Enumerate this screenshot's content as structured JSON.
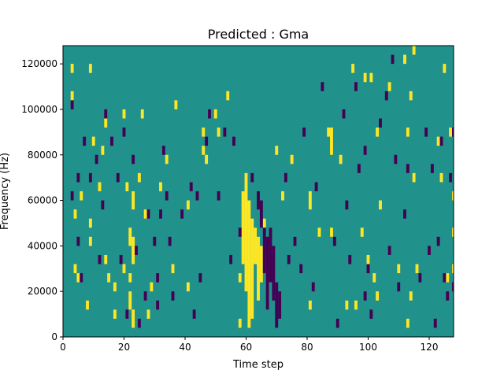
{
  "chart_data": {
    "type": "heatmap",
    "title": "Predicted : Gma",
    "xlabel": "Time step",
    "ylabel": "Frequency (Hz)",
    "xlim": [
      0,
      128
    ],
    "ylim": [
      0,
      128000
    ],
    "x_ticks": [
      0,
      20,
      40,
      60,
      80,
      100,
      120
    ],
    "x_tick_labels": [
      "0",
      "20",
      "40",
      "60",
      "80",
      "100",
      "120"
    ],
    "y_ticks": [
      0,
      20000,
      40000,
      60000,
      80000,
      100000,
      120000
    ],
    "y_tick_labels": [
      "0",
      "20000",
      "40000",
      "60000",
      "80000",
      "100000",
      "120000"
    ],
    "grid": false,
    "colormap": "viridis",
    "background_value": 0,
    "colors": {
      "background": "#21918c",
      "high": "#fde725",
      "low": "#440154"
    },
    "freq_bin_hz": 4000,
    "high_cells": [
      [
        3,
        116000,
        120000
      ],
      [
        3,
        104000,
        108000
      ],
      [
        4,
        52000,
        56000
      ],
      [
        4,
        28000,
        32000
      ],
      [
        5,
        24000,
        28000
      ],
      [
        6,
        60000,
        64000
      ],
      [
        8,
        12000,
        16000
      ],
      [
        9,
        116000,
        120000
      ],
      [
        9,
        48000,
        52000
      ],
      [
        9,
        40000,
        44000
      ],
      [
        10,
        84000,
        88000
      ],
      [
        12,
        64000,
        68000
      ],
      [
        13,
        80000,
        84000
      ],
      [
        14,
        92000,
        96000
      ],
      [
        14,
        32000,
        36000
      ],
      [
        15,
        24000,
        28000
      ],
      [
        17,
        20000,
        24000
      ],
      [
        17,
        8000,
        12000
      ],
      [
        20,
        96000,
        100000
      ],
      [
        20,
        28000,
        32000
      ],
      [
        21,
        64000,
        68000
      ],
      [
        22,
        40000,
        48000
      ],
      [
        22,
        24000,
        28000
      ],
      [
        22,
        12000,
        20000
      ],
      [
        23,
        56000,
        64000
      ],
      [
        23,
        32000,
        44000
      ],
      [
        23,
        4000,
        12000
      ],
      [
        25,
        68000,
        72000
      ],
      [
        26,
        96000,
        100000
      ],
      [
        27,
        52000,
        56000
      ],
      [
        28,
        8000,
        12000
      ],
      [
        29,
        20000,
        24000
      ],
      [
        32,
        64000,
        68000
      ],
      [
        34,
        76000,
        80000
      ],
      [
        36,
        28000,
        32000
      ],
      [
        37,
        100000,
        104000
      ],
      [
        41,
        56000,
        60000
      ],
      [
        41,
        20000,
        24000
      ],
      [
        46,
        88000,
        92000
      ],
      [
        46,
        80000,
        84000
      ],
      [
        47,
        76000,
        80000
      ],
      [
        50,
        96000,
        100000
      ],
      [
        51,
        88000,
        92000
      ],
      [
        54,
        104000,
        108000
      ],
      [
        58,
        24000,
        28000
      ],
      [
        58,
        4000,
        8000
      ],
      [
        59,
        32000,
        64000
      ],
      [
        60,
        20000,
        72000
      ],
      [
        61,
        4000,
        60000
      ],
      [
        62,
        8000,
        52000
      ],
      [
        63,
        32000,
        48000
      ],
      [
        64,
        16000,
        44000
      ],
      [
        65,
        24000,
        40000
      ],
      [
        66,
        48000,
        52000
      ],
      [
        68,
        36000,
        40000
      ],
      [
        70,
        80000,
        84000
      ],
      [
        72,
        60000,
        64000
      ],
      [
        75,
        76000,
        80000
      ],
      [
        81,
        56000,
        64000
      ],
      [
        81,
        12000,
        16000
      ],
      [
        84,
        44000,
        48000
      ],
      [
        87,
        88000,
        92000
      ],
      [
        88,
        80000,
        92000
      ],
      [
        88,
        44000,
        48000
      ],
      [
        91,
        76000,
        80000
      ],
      [
        93,
        12000,
        16000
      ],
      [
        95,
        116000,
        120000
      ],
      [
        96,
        12000,
        16000
      ],
      [
        98,
        44000,
        48000
      ],
      [
        99,
        112000,
        116000
      ],
      [
        100,
        32000,
        36000
      ],
      [
        101,
        112000,
        116000
      ],
      [
        102,
        24000,
        28000
      ],
      [
        103,
        16000,
        20000
      ],
      [
        103,
        88000,
        92000
      ],
      [
        104,
        56000,
        60000
      ],
      [
        107,
        108000,
        112000
      ],
      [
        110,
        28000,
        32000
      ],
      [
        112,
        120000,
        124000
      ],
      [
        113,
        4000,
        8000
      ],
      [
        113,
        88000,
        92000
      ],
      [
        114,
        16000,
        20000
      ],
      [
        114,
        104000,
        108000
      ],
      [
        115,
        124000,
        128000
      ],
      [
        115,
        68000,
        72000
      ],
      [
        116,
        28000,
        32000
      ],
      [
        123,
        84000,
        88000
      ],
      [
        124,
        68000,
        72000
      ],
      [
        125,
        116000,
        120000
      ],
      [
        126,
        24000,
        28000
      ],
      [
        127,
        88000,
        92000
      ],
      [
        128,
        44000,
        48000
      ],
      [
        128,
        60000,
        64000
      ],
      [
        128,
        28000,
        32000
      ]
    ],
    "low_cells": [
      [
        3,
        100000,
        104000
      ],
      [
        3,
        60000,
        64000
      ],
      [
        5,
        68000,
        72000
      ],
      [
        5,
        40000,
        44000
      ],
      [
        6,
        24000,
        28000
      ],
      [
        7,
        84000,
        88000
      ],
      [
        9,
        68000,
        72000
      ],
      [
        11,
        76000,
        80000
      ],
      [
        12,
        32000,
        36000
      ],
      [
        13,
        56000,
        60000
      ],
      [
        14,
        96000,
        100000
      ],
      [
        16,
        84000,
        88000
      ],
      [
        18,
        68000,
        72000
      ],
      [
        19,
        32000,
        36000
      ],
      [
        20,
        88000,
        92000
      ],
      [
        21,
        8000,
        12000
      ],
      [
        23,
        76000,
        80000
      ],
      [
        24,
        36000,
        40000
      ],
      [
        25,
        4000,
        8000
      ],
      [
        27,
        16000,
        20000
      ],
      [
        28,
        52000,
        56000
      ],
      [
        30,
        40000,
        44000
      ],
      [
        31,
        24000,
        28000
      ],
      [
        31,
        12000,
        16000
      ],
      [
        32,
        52000,
        56000
      ],
      [
        33,
        80000,
        84000
      ],
      [
        34,
        60000,
        64000
      ],
      [
        35,
        40000,
        44000
      ],
      [
        36,
        16000,
        20000
      ],
      [
        39,
        52000,
        56000
      ],
      [
        42,
        64000,
        68000
      ],
      [
        43,
        8000,
        12000
      ],
      [
        44,
        60000,
        64000
      ],
      [
        45,
        24000,
        28000
      ],
      [
        47,
        84000,
        88000
      ],
      [
        48,
        96000,
        100000
      ],
      [
        51,
        60000,
        64000
      ],
      [
        53,
        88000,
        92000
      ],
      [
        55,
        32000,
        36000
      ],
      [
        56,
        84000,
        88000
      ],
      [
        58,
        44000,
        48000
      ],
      [
        62,
        68000,
        72000
      ],
      [
        64,
        56000,
        64000
      ],
      [
        65,
        48000,
        60000
      ],
      [
        66,
        28000,
        48000
      ],
      [
        67,
        12000,
        44000
      ],
      [
        68,
        24000,
        48000
      ],
      [
        69,
        16000,
        40000
      ],
      [
        70,
        4000,
        24000
      ],
      [
        71,
        8000,
        20000
      ],
      [
        73,
        68000,
        72000
      ],
      [
        74,
        32000,
        36000
      ],
      [
        76,
        40000,
        44000
      ],
      [
        78,
        28000,
        32000
      ],
      [
        79,
        88000,
        92000
      ],
      [
        82,
        20000,
        24000
      ],
      [
        83,
        64000,
        68000
      ],
      [
        85,
        108000,
        112000
      ],
      [
        89,
        40000,
        44000
      ],
      [
        90,
        4000,
        8000
      ],
      [
        92,
        96000,
        100000
      ],
      [
        93,
        56000,
        60000
      ],
      [
        94,
        32000,
        36000
      ],
      [
        96,
        108000,
        112000
      ],
      [
        97,
        72000,
        76000
      ],
      [
        99,
        80000,
        84000
      ],
      [
        99,
        16000,
        20000
      ],
      [
        100,
        28000,
        32000
      ],
      [
        101,
        8000,
        12000
      ],
      [
        104,
        92000,
        96000
      ],
      [
        106,
        104000,
        108000
      ],
      [
        107,
        36000,
        40000
      ],
      [
        108,
        120000,
        124000
      ],
      [
        109,
        76000,
        80000
      ],
      [
        110,
        20000,
        24000
      ],
      [
        112,
        52000,
        56000
      ],
      [
        113,
        72000,
        76000
      ],
      [
        117,
        24000,
        28000
      ],
      [
        119,
        88000,
        92000
      ],
      [
        120,
        36000,
        40000
      ],
      [
        121,
        72000,
        76000
      ],
      [
        122,
        4000,
        8000
      ],
      [
        123,
        40000,
        44000
      ],
      [
        124,
        84000,
        88000
      ],
      [
        125,
        24000,
        28000
      ],
      [
        126,
        16000,
        20000
      ],
      [
        127,
        68000,
        72000
      ],
      [
        128,
        20000,
        24000
      ],
      [
        128,
        88000,
        92000
      ]
    ]
  }
}
